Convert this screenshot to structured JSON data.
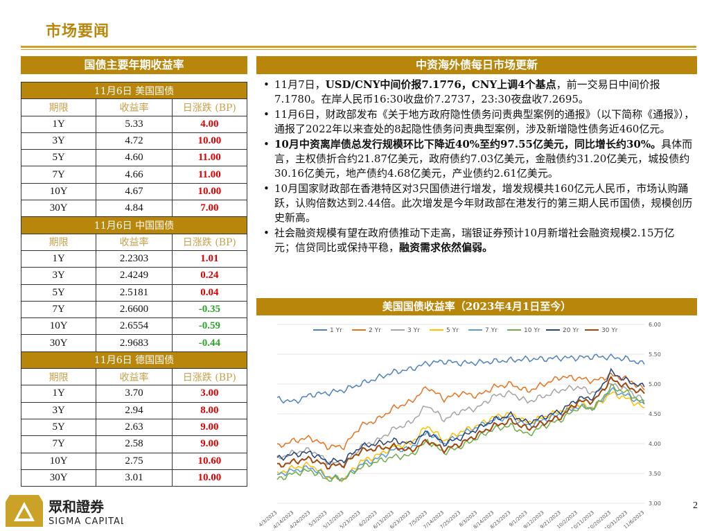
{
  "page": {
    "title": "市场要闻",
    "number": "2"
  },
  "left": {
    "header": "国债主要年期收益率",
    "tables": [
      {
        "title": "11月6日  美国国债",
        "cols": [
          "期限",
          "收益率",
          "日涨跌 (BP)"
        ],
        "rows": [
          [
            "1Y",
            "5.33",
            "4.00"
          ],
          [
            "3Y",
            "4.72",
            "10.00"
          ],
          [
            "5Y",
            "4.60",
            "11.00"
          ],
          [
            "7Y",
            "4.66",
            "11.00"
          ],
          [
            "10Y",
            "4.67",
            "10.00"
          ],
          [
            "30Y",
            "4.84",
            "7.00"
          ]
        ],
        "dirs": [
          "up",
          "up",
          "up",
          "up",
          "up",
          "up"
        ]
      },
      {
        "title": "11月6日  中国国债",
        "cols": [
          "期限",
          "收益率",
          "日涨跌 (BP)"
        ],
        "rows": [
          [
            "1Y",
            "2.2303",
            "1.01"
          ],
          [
            "3Y",
            "2.4249",
            "0.24"
          ],
          [
            "5Y",
            "2.5181",
            "0.04"
          ],
          [
            "7Y",
            "2.6600",
            "-0.35"
          ],
          [
            "10Y",
            "2.6554",
            "-0.59"
          ],
          [
            "30Y",
            "2.9683",
            "-0.44"
          ]
        ],
        "dirs": [
          "up",
          "up",
          "up",
          "dn",
          "dn",
          "dn"
        ]
      },
      {
        "title": "11月6日  德国国债",
        "cols": [
          "期限",
          "收益率",
          "日涨跌 (BP)"
        ],
        "rows": [
          [
            "1Y",
            "3.70",
            "3.00"
          ],
          [
            "3Y",
            "2.94",
            "8.00"
          ],
          [
            "5Y",
            "2.63",
            "9.00"
          ],
          [
            "7Y",
            "2.58",
            "9.00"
          ],
          [
            "10Y",
            "2.75",
            "10.60"
          ],
          [
            "30Y",
            "3.01",
            "10.00"
          ]
        ],
        "dirs": [
          "up",
          "up",
          "up",
          "up",
          "up",
          "up"
        ]
      }
    ]
  },
  "right": {
    "header": "中资海外债每日市场更新",
    "news": [
      {
        "parts": [
          {
            "t": "11月7日，",
            "b": false
          },
          {
            "t": "USD/CNY中间价报7.1776，CNY上调4个基点",
            "b": true
          },
          {
            "t": "，前一交易日中间价报7.1780。在岸人民币16:30收盘价7.2737，23:30夜盘收7.2695。",
            "b": false
          }
        ]
      },
      {
        "parts": [
          {
            "t": "11月6日，财政部发布《关于地方政府隐性债务问责典型案例的通报》（以下简称《通报》），通报了2022年以来查处的8起隐性债务问责典型案例，涉及新增隐性债务近460亿元。",
            "b": false
          }
        ]
      },
      {
        "parts": [
          {
            "t": "10月中资离岸债总发行规模环比下降近40%至约97.55亿美元，同比增长约30%。",
            "b": true
          },
          {
            "t": "具体而言，主权债折合约21.87亿美元，政府债约7.03亿美元，金融债约31.20亿美元，城投债约30.16亿美元，地产债约4.68亿美元，产业债约2.61亿美元。",
            "b": false
          }
        ]
      },
      {
        "parts": [
          {
            "t": "10月国家财政部在香港特区对3只国债进行增发，增发规模共160亿元人民币，市场认购踊跃，认购倍数达到2.44倍。此次增发是今年财政部在港发行的第三期人民币国债，规模创历史新高。",
            "b": false
          }
        ]
      },
      {
        "parts": [
          {
            "t": "社会融资规模有望在政府债推动下走高，瑞银证券预计10月新增社会融资规模2.15万亿元；信贷同比或保持平稳，",
            "b": false
          },
          {
            "t": "融资需求依然偏弱。",
            "b": true
          }
        ]
      }
    ],
    "chart_header": "美国国债收益率（2023年4月1日至今）"
  },
  "chart_data": {
    "type": "line",
    "ylim": [
      3.0,
      6.0
    ],
    "yticks": [
      "3.00",
      "3.50",
      "4.00",
      "4.50",
      "5.00",
      "5.50",
      "6.00"
    ],
    "xticks": [
      "4/3/2023",
      "4/14/2023",
      "4/24/2023",
      "5/3/2023",
      "5/12/2023",
      "5/23/2023",
      "6/2/2023",
      "6/13/2023",
      "6/23/2023",
      "7/5/2023",
      "7/14/2023",
      "7/25/2023",
      "8/3/2023",
      "8/14/2023",
      "8/23/2023",
      "9/1/2023",
      "9/12/2023",
      "9/21/2023",
      "10/2/2023",
      "10/11/2023",
      "10/20/2023",
      "10/31/2023",
      "11/6/2023"
    ],
    "series": [
      {
        "name": "1 Yr",
        "color": "#4f81bd",
        "values": [
          4.75,
          4.7,
          4.82,
          4.85,
          4.9,
          5.0,
          5.1,
          5.2,
          5.25,
          5.35,
          5.38,
          5.35,
          5.36,
          5.38,
          5.4,
          5.42,
          5.42,
          5.44,
          5.44,
          5.46,
          5.45,
          5.42,
          5.33
        ]
      },
      {
        "name": "2 Yr",
        "color": "#e8731f",
        "values": [
          3.95,
          4.05,
          4.1,
          3.95,
          3.95,
          4.3,
          4.4,
          4.6,
          4.7,
          4.95,
          4.75,
          4.85,
          4.8,
          4.95,
          5.0,
          4.88,
          5.0,
          5.12,
          5.1,
          5.05,
          5.15,
          5.08,
          4.9
        ]
      },
      {
        "name": "3 Yr",
        "color": "#a5a5a5",
        "values": [
          3.75,
          3.85,
          3.9,
          3.7,
          3.65,
          3.95,
          4.05,
          4.25,
          4.35,
          4.65,
          4.4,
          4.55,
          4.6,
          4.8,
          4.85,
          4.7,
          4.8,
          4.9,
          4.95,
          4.85,
          5.0,
          4.9,
          4.72
        ]
      },
      {
        "name": "5 Yr",
        "color": "#ffc000",
        "values": [
          3.5,
          3.6,
          3.65,
          3.45,
          3.4,
          3.7,
          3.8,
          3.95,
          4.0,
          4.3,
          4.05,
          4.2,
          4.3,
          4.45,
          4.5,
          4.35,
          4.45,
          4.55,
          4.65,
          4.6,
          4.85,
          4.75,
          4.6
        ]
      },
      {
        "name": "7 Yr",
        "color": "#5b9bd5",
        "values": [
          3.48,
          3.55,
          3.6,
          3.45,
          3.4,
          3.65,
          3.75,
          3.9,
          3.92,
          4.2,
          4.0,
          4.15,
          4.28,
          4.4,
          4.45,
          4.3,
          4.4,
          4.5,
          4.62,
          4.6,
          4.9,
          4.8,
          4.66
        ]
      },
      {
        "name": "10 Yr",
        "color": "#70ad47",
        "values": [
          3.4,
          3.5,
          3.55,
          3.4,
          3.42,
          3.6,
          3.7,
          3.78,
          3.8,
          4.05,
          3.85,
          3.95,
          4.1,
          4.25,
          4.3,
          4.15,
          4.3,
          4.4,
          4.6,
          4.6,
          4.95,
          4.85,
          4.67
        ]
      },
      {
        "name": "20 Yr",
        "color": "#264478",
        "values": [
          3.75,
          3.82,
          3.85,
          3.7,
          3.72,
          3.95,
          4.0,
          4.05,
          4.0,
          4.2,
          4.0,
          4.1,
          4.25,
          4.4,
          4.48,
          4.35,
          4.45,
          4.55,
          4.75,
          4.78,
          5.2,
          5.05,
          4.95
        ]
      },
      {
        "name": "30 Yr",
        "color": "#9e480e",
        "values": [
          3.62,
          3.7,
          3.75,
          3.62,
          3.65,
          3.88,
          3.92,
          3.95,
          3.88,
          4.05,
          3.9,
          4.0,
          4.15,
          4.3,
          4.38,
          4.25,
          4.35,
          4.45,
          4.7,
          4.72,
          5.08,
          4.95,
          4.84
        ]
      }
    ]
  },
  "logo": {
    "name_cn": "眾和證券",
    "name_en": "SIGMA CAPITAL",
    "colors": {
      "gold": "#c9a227",
      "dark": "#222222"
    }
  }
}
